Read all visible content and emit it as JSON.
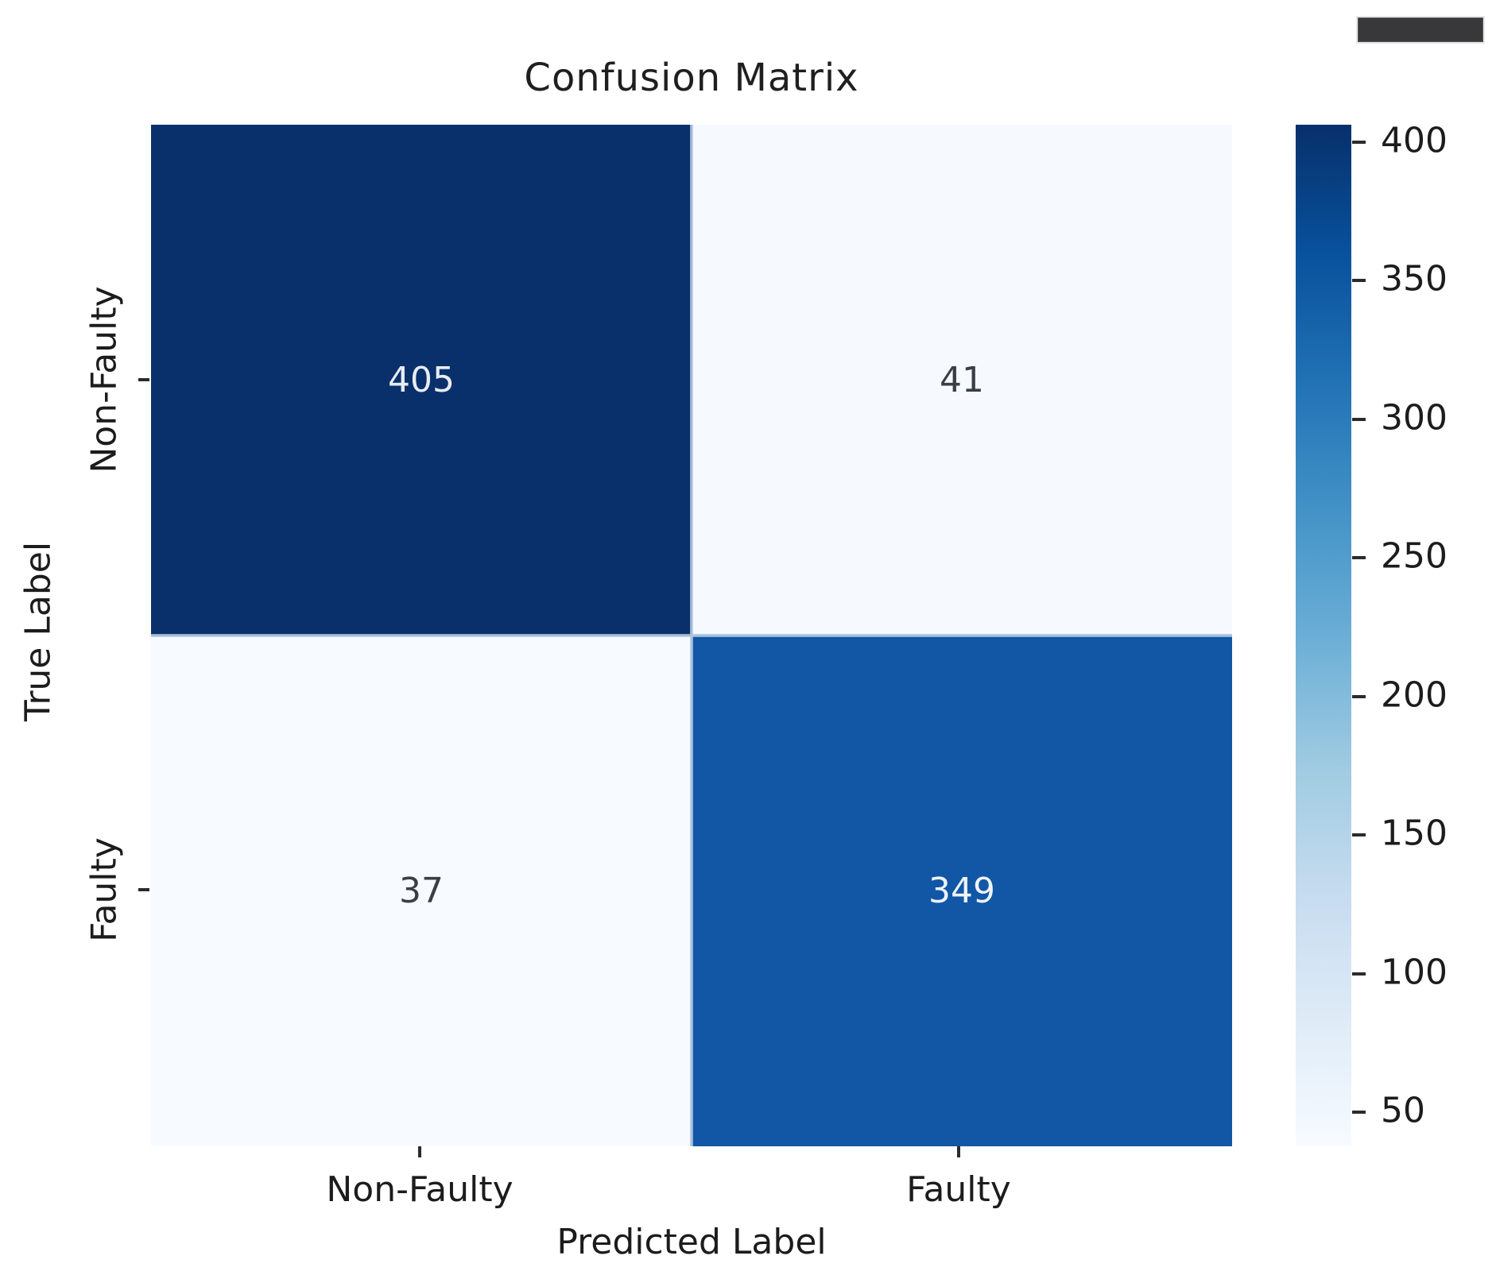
{
  "title": "Confusion Matrix",
  "decoration": {
    "top_right_bar_color": "#38383a"
  },
  "chart_data": {
    "type": "heatmap",
    "title": "Confusion Matrix",
    "xlabel": "Predicted Label",
    "ylabel": "True Label",
    "x_categories": [
      "Non-Faulty",
      "Faulty"
    ],
    "y_categories": [
      "Non-Faulty",
      "Faulty"
    ],
    "matrix": [
      [
        405,
        41
      ],
      [
        37,
        349
      ]
    ],
    "colormap": "Blues",
    "colormap_hex": [
      "#f7fbff",
      "#deebf7",
      "#c6dbef",
      "#9ecae1",
      "#6baed6",
      "#4292c6",
      "#2171b5",
      "#08519c",
      "#08306b"
    ],
    "grid": false,
    "legend_position": "right-colorbar",
    "colorbar": {
      "vmin": 37,
      "vmax": 405,
      "ticks": [
        50,
        100,
        150,
        200,
        250,
        300,
        350,
        400
      ]
    },
    "cells": [
      {
        "row": 0,
        "col": 0,
        "true_label": "Non-Faulty",
        "predicted_label": "Non-Faulty",
        "value": "405",
        "bg": "#0a306b",
        "fg": "#e7ecf2"
      },
      {
        "row": 0,
        "col": 1,
        "true_label": "Non-Faulty",
        "predicted_label": "Faulty",
        "value": "41",
        "bg": "#f6fafe",
        "fg": "#3a3f47"
      },
      {
        "row": 1,
        "col": 0,
        "true_label": "Faulty",
        "predicted_label": "Non-Faulty",
        "value": "37",
        "bg": "#f7fbff",
        "fg": "#3a3f47"
      },
      {
        "row": 1,
        "col": 1,
        "true_label": "Faulty",
        "predicted_label": "Faulty",
        "value": "349",
        "bg": "#1157a6",
        "fg": "#eef3f9"
      }
    ]
  }
}
